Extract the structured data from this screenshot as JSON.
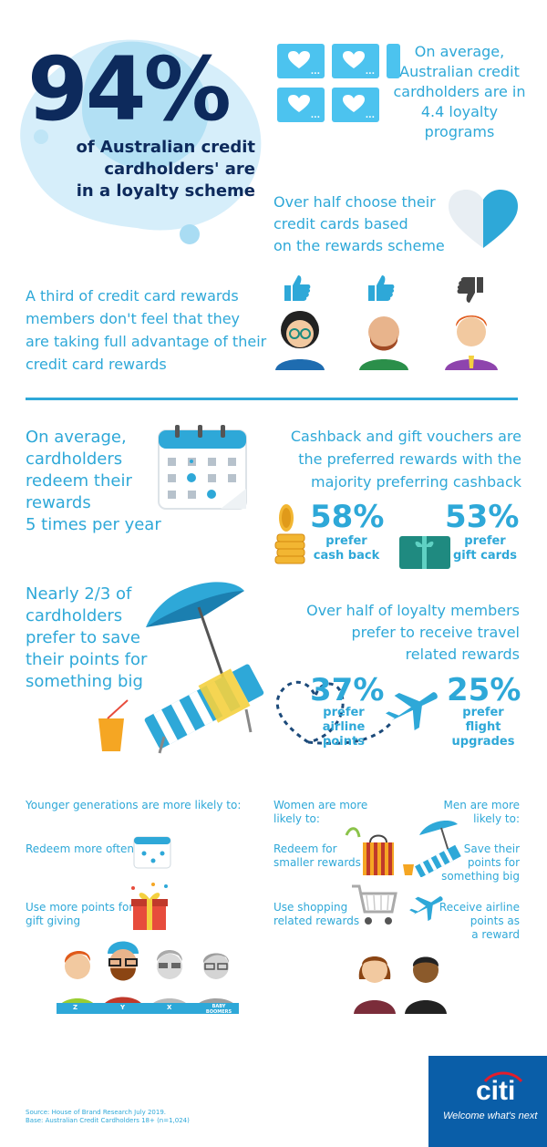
{
  "hero": {
    "percent": "94%",
    "caption": [
      "of Australian credit",
      "cardholders' are",
      "in a loyalty scheme"
    ]
  },
  "programs": {
    "text": [
      "On average,",
      "Australian credit",
      "cardholders are in",
      "4.4 loyalty",
      "programs"
    ],
    "card_dots": "..."
  },
  "rewards_choice": {
    "text": [
      "Over half choose their",
      "credit cards based",
      "on the rewards scheme"
    ]
  },
  "advantage": {
    "text": [
      "A third of credit card rewards",
      "members don't feel that they",
      "are taking full advantage of their",
      "credit card rewards"
    ]
  },
  "redeem": {
    "text": [
      "On average,",
      "cardholders",
      "redeem their",
      "rewards",
      "5 times per year"
    ]
  },
  "preferred": {
    "text": [
      "Cashback and gift vouchers are",
      "the preferred  rewards with the",
      "majority preferring cashback"
    ],
    "cash": {
      "percent": "58%",
      "label": [
        "prefer",
        "cash back"
      ]
    },
    "gift": {
      "percent": "53%",
      "label": [
        "prefer",
        "gift cards"
      ]
    }
  },
  "save_points": {
    "text": [
      "Nearly 2/3 of",
      "cardholders",
      "prefer to save",
      "their points for",
      "something big"
    ]
  },
  "travel": {
    "text": [
      "Over half of loyalty members",
      "prefer to receive travel",
      "related rewards"
    ],
    "airline": {
      "percent": "37%",
      "label": [
        "prefer",
        "airline",
        "points"
      ]
    },
    "upgrades": {
      "percent": "25%",
      "label": [
        "prefer",
        "flight",
        "upgrades"
      ]
    }
  },
  "younger": {
    "heading": "Younger generations are more likely to:",
    "item1": "Redeem more often",
    "item2": [
      "Use more points for",
      "gift giving"
    ],
    "generations": [
      "Z",
      "Y",
      "X",
      "BABY BOOMERS"
    ]
  },
  "women": {
    "heading": [
      "Women are more",
      "likely to:"
    ],
    "item1": [
      "Redeem for",
      "smaller rewards"
    ],
    "item2": [
      "Use shopping",
      "related rewards"
    ]
  },
  "men": {
    "heading": [
      "Men are more",
      "likely to:"
    ],
    "item1": [
      "Save their",
      "points for",
      "something big"
    ],
    "item2": [
      "Receive airline",
      "points as",
      "a reward"
    ]
  },
  "source": {
    "line1": "Source: House of Brand Research July 2019.",
    "line2": "Base: Australian Credit Cardholders 18+ (n=1,024)"
  },
  "brand": {
    "logo": "citi",
    "tagline": "Welcome what's next"
  },
  "colors": {
    "navy": "#0d2a5c",
    "sky": "#2ea8d8",
    "card": "#4cc3ef",
    "brand_blue": "#0a5ea8"
  }
}
